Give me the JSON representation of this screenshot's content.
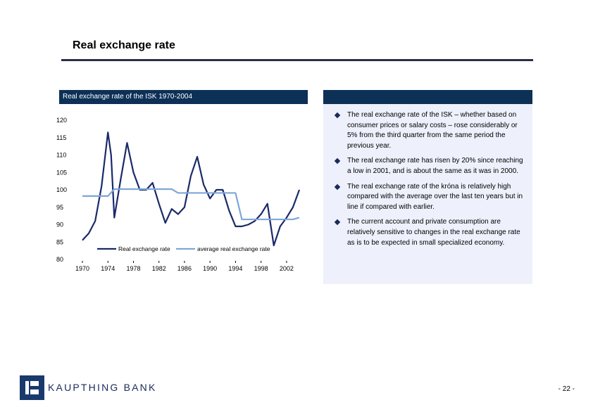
{
  "title": "Real exchange rate",
  "left_panel": {
    "header": "Real exchange rate of the ISK 1970-2004"
  },
  "right_panel": {
    "bullets": [
      "The real exchange rate of the ISK – whether based on consumer prices or salary costs – rose considerably or 5% from the third quarter from the same period the previous year.",
      "The real exchange rate has risen by 20% since reaching a low in 2001, and is about the same as it was in 2000.",
      "The real exchange rate of the króna is relatively high compared with the average over the last ten years but in line if compared with earlier.",
      "The current account and private consumption are relatively sensitive to changes in the real exchange rate as is to be expected in small specialized economy."
    ]
  },
  "footer": {
    "brand": "KAUPTHING BANK",
    "page": "- 22 -"
  },
  "colors": {
    "navy": "#0d3057",
    "real_series": "#1a2a6a",
    "average_series": "#7fa6d9",
    "panel_bg": "#eef0fb"
  },
  "chart_data": {
    "type": "line",
    "title": "Real exchange rate of the ISK 1970-2004",
    "xlabel": "",
    "ylabel": "",
    "x_ticks": [
      1970,
      1974,
      1978,
      1982,
      1986,
      1990,
      1994,
      1998,
      2002
    ],
    "x_tick_labels": [
      "1970",
      "1974",
      "1978",
      "1982",
      "1986",
      "1990",
      "1994",
      "1998",
      "2002"
    ],
    "y_ticks": [
      80,
      85,
      90,
      95,
      100,
      105,
      110,
      115,
      120
    ],
    "y_tick_labels": [
      "80",
      "85",
      "90",
      "95",
      "100",
      "105",
      "110",
      "115",
      "120"
    ],
    "ylim": [
      80,
      120
    ],
    "xlim": [
      1970,
      2004
    ],
    "grid": false,
    "legend_position": "bottom",
    "series": [
      {
        "name": "Real exchange rate",
        "color": "#1a2a6a",
        "x": [
          1970,
          1971,
          1972,
          1973,
          1974,
          1974.5,
          1975,
          1976,
          1977,
          1978,
          1979,
          1980,
          1981,
          1982,
          1983,
          1984,
          1985,
          1986,
          1987,
          1988,
          1989,
          1990,
          1991,
          1992,
          1993,
          1994,
          1995,
          1996,
          1997,
          1998,
          1999,
          2000,
          2001,
          2002,
          2003,
          2004
        ],
        "y": [
          85.5,
          87.5,
          91,
          101,
          116.5,
          110,
          92,
          103,
          113.5,
          105,
          100,
          100,
          102,
          96,
          90.5,
          94.5,
          93,
          95,
          104,
          109.5,
          101.5,
          97.5,
          100,
          100,
          94,
          89.5,
          89.5,
          90,
          91,
          93,
          96,
          84,
          89.5,
          92,
          95,
          100
        ]
      },
      {
        "name": "average real exchange rate",
        "color": "#7fa6d9",
        "x": [
          1970,
          1974,
          1975,
          1984,
          1985,
          1994,
          1995,
          2003,
          2004
        ],
        "y": [
          98.2,
          98.2,
          100.2,
          100.2,
          99.1,
          99.1,
          91.5,
          91.5,
          92
        ],
        "step": true
      }
    ]
  }
}
